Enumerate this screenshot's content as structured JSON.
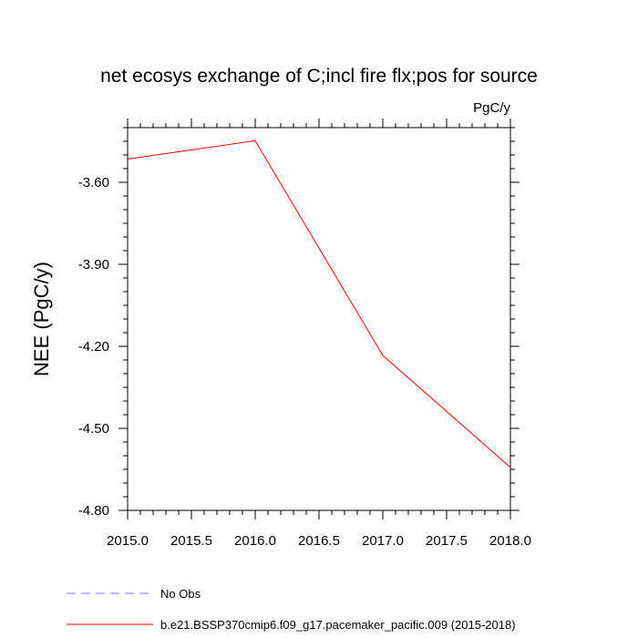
{
  "chart_data": {
    "type": "line",
    "title": "net ecosys exchange of C;incl fire flx;pos for source",
    "units": "PgC/y",
    "ylabel": "NEE  (PgC/y)",
    "xlabel": "",
    "xlim": [
      2015.0,
      2018.0
    ],
    "ylim": [
      -4.8,
      -3.4
    ],
    "x_ticks": [
      2015.0,
      2015.5,
      2016.0,
      2016.5,
      2017.0,
      2017.5,
      2018.0
    ],
    "x_tick_labels": [
      "2015.0",
      "2015.5",
      "2016.0",
      "2016.5",
      "2017.0",
      "2017.5",
      "2018.0"
    ],
    "y_ticks": [
      -4.8,
      -4.5,
      -4.2,
      -3.9,
      -3.6
    ],
    "y_tick_labels": [
      "-4.80",
      "-4.50",
      "-4.20",
      "-3.90",
      "-3.60"
    ],
    "series": [
      {
        "name": "b.e21.BSSP370cmip6.f09_g17.pacemaker_pacific.009 (2015-2018)",
        "color": "#ff0000",
        "style": "solid",
        "x": [
          2015,
          2016,
          2017,
          2018
        ],
        "values": [
          -3.515,
          -3.448,
          -4.233,
          -4.643
        ]
      }
    ],
    "legend": [
      {
        "label": "No Obs",
        "color": "#7777ff",
        "style": "dashed"
      },
      {
        "label": "b.e21.BSSP370cmip6.f09_g17.pacemaker_pacific.009 (2015-2018)",
        "color": "#ff0000",
        "style": "solid"
      }
    ]
  }
}
